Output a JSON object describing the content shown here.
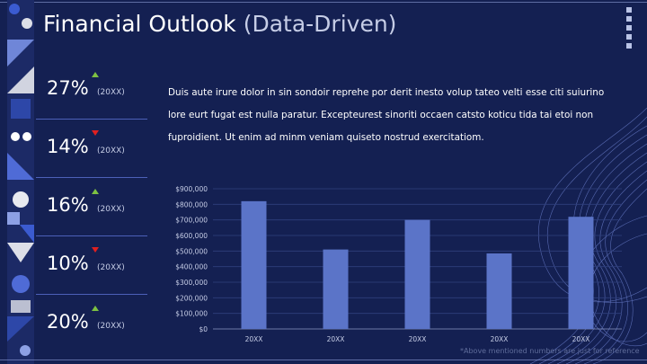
{
  "title": {
    "main": "Financial Outlook",
    "sub": " (Data-Driven)"
  },
  "stats": [
    {
      "value": "27%",
      "year": "(20XX)",
      "direction": "up"
    },
    {
      "value": "14%",
      "year": "(20XX)",
      "direction": "down"
    },
    {
      "value": "16%",
      "year": "(20XX)",
      "direction": "up"
    },
    {
      "value": "10%",
      "year": "(20XX)",
      "direction": "down"
    },
    {
      "value": "20%",
      "year": "(20XX)",
      "direction": "up"
    }
  ],
  "paragraph": "Duis aute irure dolor in sin sondoir reprehe por derit inesto volup tateo velti esse citi suiurino lore eurt fugat est nulla paratur. Excepteurest sinoriti occaen catsto koticu tida tai etoi non fuproidient. Ut enim ad minm veniam quiseto nostrud exercitatiom.",
  "footnote": "*Above mentioned numbers are just for reference",
  "colors": {
    "background": "#142052",
    "bar": "#5b74c8",
    "up": "#7dc142",
    "down": "#e02020"
  },
  "chart_data": {
    "type": "bar",
    "categories": [
      "20XX",
      "20XX",
      "20XX",
      "20XX",
      "20XX"
    ],
    "values": [
      820000,
      510000,
      700000,
      485000,
      720000
    ],
    "ylim": [
      0,
      900000
    ],
    "yticks": [
      0,
      100000,
      200000,
      300000,
      400000,
      500000,
      600000,
      700000,
      800000,
      900000
    ],
    "ytick_labels": [
      "$0",
      "$100,000",
      "$200,000",
      "$300,000",
      "$400,000",
      "$500,000",
      "$600,000",
      "$700,000",
      "$800,000",
      "$900,000"
    ],
    "grid": true,
    "title": "",
    "xlabel": "",
    "ylabel": ""
  }
}
